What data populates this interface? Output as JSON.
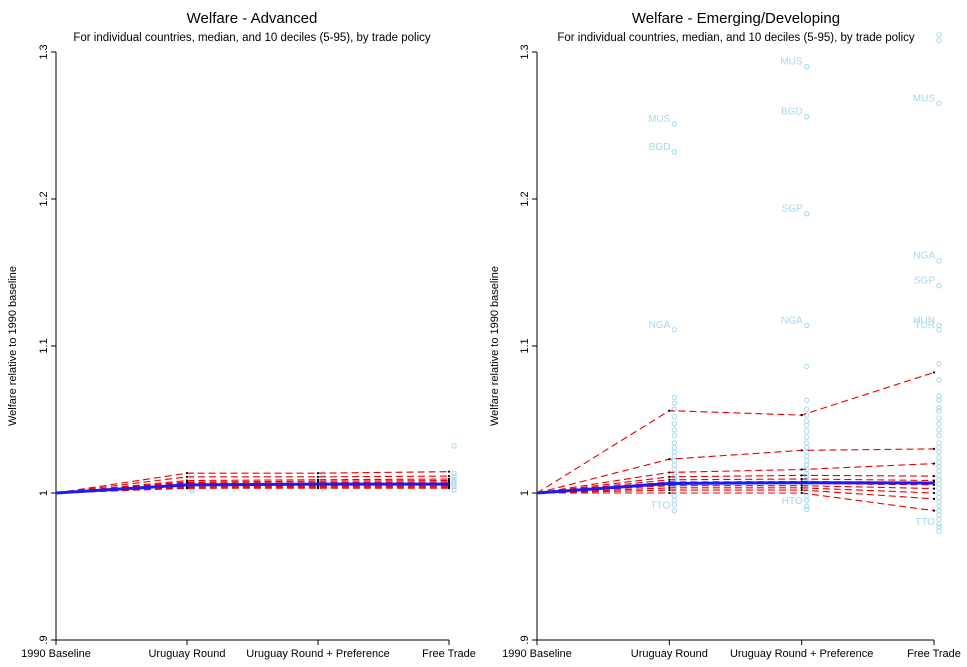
{
  "chart_data": [
    {
      "type": "line",
      "title": "Welfare - Advanced",
      "subtitle": "For individual countries, median, and 10 deciles (5-95), by trade policy",
      "ylabel": "Welfare relative to 1990 baseline",
      "xlabel": "",
      "categories": [
        "1990 Baseline",
        "Uruguay Round",
        "Uruguay Round + Preference",
        "Free Trade"
      ],
      "y_ticks": [
        0.9,
        1,
        1.1,
        1.2,
        1.3
      ],
      "y_tick_labels": [
        ".9",
        "1",
        "1.1",
        "1.2",
        "1.3"
      ],
      "ylim": [
        0.9,
        1.3
      ],
      "grid": false,
      "median": {
        "values": [
          1.0,
          1.0055,
          1.006,
          1.006
        ]
      },
      "deciles": [
        {
          "values": [
            1.0,
            1.0135,
            1.0135,
            1.0145
          ]
        },
        {
          "values": [
            1.0,
            1.011,
            1.011,
            1.0115
          ]
        },
        {
          "values": [
            1.0,
            1.0085,
            1.009,
            1.0095
          ]
        },
        {
          "values": [
            1.0,
            1.0075,
            1.008,
            1.0085
          ]
        },
        {
          "values": [
            1.0,
            1.0068,
            1.007,
            1.0075
          ]
        },
        {
          "values": [
            1.0,
            1.006,
            1.0063,
            1.0065
          ]
        },
        {
          "values": [
            1.0,
            1.0055,
            1.0058,
            1.006
          ]
        },
        {
          "values": [
            1.0,
            1.005,
            1.0052,
            1.0053
          ]
        },
        {
          "values": [
            1.0,
            1.0045,
            1.0046,
            1.0047
          ]
        },
        {
          "values": [
            1.0,
            1.0038,
            1.004,
            1.004
          ]
        },
        {
          "values": [
            1.0,
            1.0032,
            1.0033,
            1.0033
          ]
        }
      ],
      "countries": [
        {
          "x": 1,
          "y": 1.0015
        },
        {
          "x": 1,
          "y": 1.003
        },
        {
          "x": 1,
          "y": 1.004
        },
        {
          "x": 1,
          "y": 1.005
        },
        {
          "x": 1,
          "y": 1.006
        },
        {
          "x": 1,
          "y": 1.007
        },
        {
          "x": 1,
          "y": 1.009
        },
        {
          "x": 1,
          "y": 1.0125
        },
        {
          "x": 2,
          "y": 1.003
        },
        {
          "x": 2,
          "y": 1.005
        },
        {
          "x": 2,
          "y": 1.0065
        },
        {
          "x": 2,
          "y": 1.008
        },
        {
          "x": 2,
          "y": 1.0105
        },
        {
          "x": 2,
          "y": 1.013
        },
        {
          "x": 3,
          "y": 1.002
        },
        {
          "x": 3,
          "y": 1.0045
        },
        {
          "x": 3,
          "y": 1.006
        },
        {
          "x": 3,
          "y": 1.0075
        },
        {
          "x": 3,
          "y": 1.009
        },
        {
          "x": 3,
          "y": 1.011
        },
        {
          "x": 3,
          "y": 1.0135
        },
        {
          "x": 3,
          "y": 1.032
        }
      ]
    },
    {
      "type": "line",
      "title": "Welfare - Emerging/Developing",
      "subtitle": "For individual countries, median, and 10 deciles (5-95), by trade policy",
      "ylabel": "Welfare relative to 1990 baseline",
      "xlabel": "",
      "categories": [
        "1990 Baseline",
        "Uruguay Round",
        "Uruguay Round + Preference",
        "Free Trade"
      ],
      "y_ticks": [
        0.9,
        1,
        1.1,
        1.2,
        1.3
      ],
      "y_tick_labels": [
        ".9",
        "1",
        "1.1",
        "1.2",
        "1.3"
      ],
      "ylim": [
        0.9,
        1.3
      ],
      "grid": false,
      "median": {
        "values": [
          1.0,
          1.0065,
          1.007,
          1.0068
        ]
      },
      "deciles": [
        {
          "values": [
            1.0,
            1.056,
            1.053,
            1.082
          ]
        },
        {
          "values": [
            1.0,
            1.023,
            1.029,
            1.03
          ]
        },
        {
          "values": [
            1.0,
            1.014,
            1.016,
            1.02
          ]
        },
        {
          "values": [
            1.0,
            1.011,
            1.012,
            1.0115
          ]
        },
        {
          "values": [
            1.0,
            1.009,
            1.0095,
            1.0085
          ]
        },
        {
          "values": [
            1.0,
            1.0075,
            1.0078,
            1.0072
          ]
        },
        {
          "values": [
            1.0,
            1.0062,
            1.0065,
            1.0055
          ]
        },
        {
          "values": [
            1.0,
            1.005,
            1.005,
            1.003
          ]
        },
        {
          "values": [
            1.0,
            1.0035,
            1.0035,
            1.0
          ]
        },
        {
          "values": [
            1.0,
            1.002,
            1.002,
            0.996
          ]
        },
        {
          "values": [
            1.0,
            1.0,
            1.0,
            0.988
          ]
        }
      ],
      "countries": [
        {
          "x": 1,
          "y": 1.251,
          "label": "MUS"
        },
        {
          "x": 1,
          "y": 1.232,
          "label": "BGD"
        },
        {
          "x": 1,
          "y": 1.111,
          "label": "NGA"
        },
        {
          "x": 1,
          "y": 0.988,
          "label": "TTO"
        },
        {
          "x": 1,
          "y": 1.065
        },
        {
          "x": 1,
          "y": 1.061
        },
        {
          "x": 1,
          "y": 1.057
        },
        {
          "x": 1,
          "y": 1.052
        },
        {
          "x": 1,
          "y": 1.047
        },
        {
          "x": 1,
          "y": 1.043
        },
        {
          "x": 1,
          "y": 1.039
        },
        {
          "x": 1,
          "y": 1.034
        },
        {
          "x": 1,
          "y": 1.031
        },
        {
          "x": 1,
          "y": 1.028
        },
        {
          "x": 1,
          "y": 1.025
        },
        {
          "x": 1,
          "y": 1.022
        },
        {
          "x": 1,
          "y": 1.019
        },
        {
          "x": 1,
          "y": 1.016
        },
        {
          "x": 1,
          "y": 1.013
        },
        {
          "x": 1,
          "y": 1.011
        },
        {
          "x": 1,
          "y": 1.009
        },
        {
          "x": 1,
          "y": 1.007
        },
        {
          "x": 1,
          "y": 1.005
        },
        {
          "x": 1,
          "y": 1.003
        },
        {
          "x": 1,
          "y": 1.001
        },
        {
          "x": 1,
          "y": 0.998
        },
        {
          "x": 1,
          "y": 0.995
        },
        {
          "x": 1,
          "y": 0.992
        },
        {
          "x": 2,
          "y": 1.29,
          "label": "MUS"
        },
        {
          "x": 2,
          "y": 1.256,
          "label": "BGD"
        },
        {
          "x": 2,
          "y": 1.19,
          "label": "SGP"
        },
        {
          "x": 2,
          "y": 1.114,
          "label": "NGA"
        },
        {
          "x": 2,
          "y": 0.991,
          "label": "HTO"
        },
        {
          "x": 2,
          "y": 1.086
        },
        {
          "x": 2,
          "y": 1.063
        },
        {
          "x": 2,
          "y": 1.057
        },
        {
          "x": 2,
          "y": 1.053
        },
        {
          "x": 2,
          "y": 1.049
        },
        {
          "x": 2,
          "y": 1.046
        },
        {
          "x": 2,
          "y": 1.042
        },
        {
          "x": 2,
          "y": 1.038
        },
        {
          "x": 2,
          "y": 1.034
        },
        {
          "x": 2,
          "y": 1.031
        },
        {
          "x": 2,
          "y": 1.028
        },
        {
          "x": 2,
          "y": 1.025
        },
        {
          "x": 2,
          "y": 1.022
        },
        {
          "x": 2,
          "y": 1.019
        },
        {
          "x": 2,
          "y": 1.016
        },
        {
          "x": 2,
          "y": 1.013
        },
        {
          "x": 2,
          "y": 1.011
        },
        {
          "x": 2,
          "y": 1.009
        },
        {
          "x": 2,
          "y": 1.007
        },
        {
          "x": 2,
          "y": 1.005
        },
        {
          "x": 2,
          "y": 1.003
        },
        {
          "x": 2,
          "y": 1.001
        },
        {
          "x": 2,
          "y": 0.998
        },
        {
          "x": 2,
          "y": 0.995
        },
        {
          "x": 2,
          "y": 0.989
        },
        {
          "x": 3,
          "y": 1.308
        },
        {
          "x": 3,
          "y": 1.312
        },
        {
          "x": 3,
          "y": 1.265,
          "label": "MUS"
        },
        {
          "x": 3,
          "y": 1.158,
          "label": "NGA"
        },
        {
          "x": 3,
          "y": 1.141,
          "label": "SGP"
        },
        {
          "x": 3,
          "y": 1.114,
          "label": "HUN"
        },
        {
          "x": 3,
          "y": 1.111,
          "label": "TUR"
        },
        {
          "x": 3,
          "y": 0.977,
          "label": "TTO"
        },
        {
          "x": 3,
          "y": 1.088
        },
        {
          "x": 3,
          "y": 1.077
        },
        {
          "x": 3,
          "y": 1.066
        },
        {
          "x": 3,
          "y": 1.063
        },
        {
          "x": 3,
          "y": 1.058
        },
        {
          "x": 3,
          "y": 1.056
        },
        {
          "x": 3,
          "y": 1.051
        },
        {
          "x": 3,
          "y": 1.047
        },
        {
          "x": 3,
          "y": 1.043
        },
        {
          "x": 3,
          "y": 1.039
        },
        {
          "x": 3,
          "y": 1.034
        },
        {
          "x": 3,
          "y": 1.031
        },
        {
          "x": 3,
          "y": 1.028
        },
        {
          "x": 3,
          "y": 1.024
        },
        {
          "x": 3,
          "y": 1.021
        },
        {
          "x": 3,
          "y": 1.018
        },
        {
          "x": 3,
          "y": 1.015
        },
        {
          "x": 3,
          "y": 1.012
        },
        {
          "x": 3,
          "y": 1.009
        },
        {
          "x": 3,
          "y": 1.006
        },
        {
          "x": 3,
          "y": 1.003
        },
        {
          "x": 3,
          "y": 1.0
        },
        {
          "x": 3,
          "y": 0.997
        },
        {
          "x": 3,
          "y": 0.994
        },
        {
          "x": 3,
          "y": 0.991
        },
        {
          "x": 3,
          "y": 0.988
        },
        {
          "x": 3,
          "y": 0.985
        },
        {
          "x": 3,
          "y": 0.982
        },
        {
          "x": 3,
          "y": 0.979
        },
        {
          "x": 3,
          "y": 0.974
        }
      ]
    }
  ],
  "colors": {
    "median": "#1a1aff",
    "deciles": "#e60000",
    "countries": "#a6d8ec",
    "axis": "#000000",
    "text": "#000000"
  }
}
